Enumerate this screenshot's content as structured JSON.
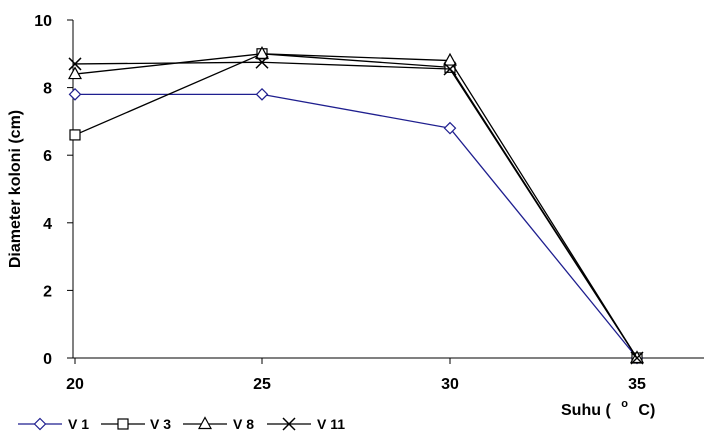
{
  "chart_data": {
    "type": "line",
    "x": [
      20,
      25,
      30,
      35
    ],
    "xlabel": "Suhu ( ° C)",
    "xlabel_parts": [
      "Suhu (",
      "o",
      "C)"
    ],
    "ylabel": "Diameter koloni (cm)",
    "ylim": [
      0,
      10
    ],
    "yticks": [
      0,
      2,
      4,
      6,
      8,
      10
    ],
    "grid": false,
    "legend_position": "bottom-left",
    "series": [
      {
        "name": "V 1",
        "values": [
          7.8,
          7.8,
          6.8,
          0
        ],
        "marker": "diamond",
        "color": "#1f1f8f"
      },
      {
        "name": "V 3",
        "values": [
          6.6,
          9.0,
          8.6,
          0
        ],
        "marker": "square",
        "color": "#000000"
      },
      {
        "name": "V 8",
        "values": [
          8.4,
          9.0,
          8.8,
          0
        ],
        "marker": "triangle",
        "color": "#000000"
      },
      {
        "name": "V 11",
        "values": [
          8.7,
          8.75,
          8.55,
          0
        ],
        "marker": "x",
        "color": "#000000"
      }
    ]
  }
}
